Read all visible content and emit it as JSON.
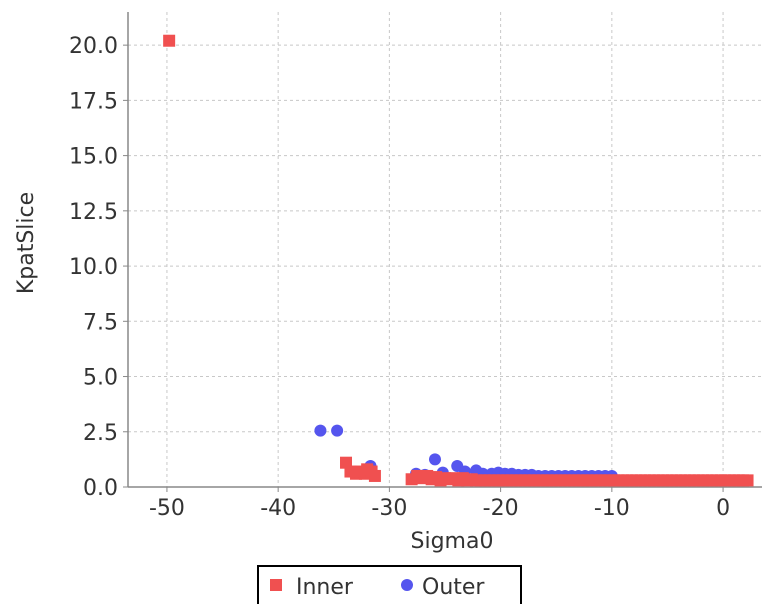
{
  "chart_data": {
    "type": "scatter",
    "xlabel": "Sigma0",
    "ylabel": "KpatSlice",
    "xlim": [
      -53.5,
      3.5
    ],
    "ylim": [
      0,
      21.5
    ],
    "x_ticks": [
      -50,
      -40,
      -30,
      -20,
      -10,
      0
    ],
    "x_tick_labels": [
      "-50",
      "-40",
      "-30",
      "-20",
      "-10",
      "0"
    ],
    "y_ticks": [
      0,
      2.5,
      5,
      7.5,
      10,
      12.5,
      15,
      17.5,
      20
    ],
    "y_tick_labels": [
      "0.0",
      "2.5",
      "5.0",
      "7.5",
      "10.0",
      "12.5",
      "15.0",
      "17.5",
      "20.0"
    ],
    "grid": true,
    "legend_position": "bottom-center",
    "series": [
      {
        "name": "Inner",
        "marker": "square",
        "color": "#f05050",
        "points": [
          [
            -49.8,
            20.2
          ],
          [
            -33.9,
            1.1
          ],
          [
            -33.5,
            0.7
          ],
          [
            -33.0,
            0.6
          ],
          [
            -32.6,
            0.7
          ],
          [
            -32.2,
            0.6
          ],
          [
            -32.0,
            0.8
          ],
          [
            -31.6,
            0.7
          ],
          [
            -31.3,
            0.5
          ],
          [
            -28.0,
            0.35
          ],
          [
            -27.5,
            0.5
          ],
          [
            -27.0,
            0.4
          ],
          [
            -26.6,
            0.5
          ],
          [
            -26.2,
            0.35
          ],
          [
            -25.8,
            0.45
          ],
          [
            -25.4,
            0.3
          ],
          [
            -25.0,
            0.4
          ],
          [
            -24.6,
            0.35
          ],
          [
            -24.2,
            0.4
          ],
          [
            -23.8,
            0.3
          ],
          [
            -23.4,
            0.4
          ],
          [
            -23.0,
            0.3
          ],
          [
            -22.6,
            0.35
          ],
          [
            -22.2,
            0.3
          ],
          [
            -21.8,
            0.3
          ],
          [
            -21.4,
            0.3
          ],
          [
            -21.0,
            0.3
          ],
          [
            -20.6,
            0.3
          ],
          [
            -20.2,
            0.3
          ],
          [
            -19.8,
            0.3
          ],
          [
            -19.4,
            0.3
          ],
          [
            -19.0,
            0.3
          ],
          [
            -18.6,
            0.3
          ],
          [
            -18.2,
            0.3
          ],
          [
            -17.8,
            0.3
          ],
          [
            -17.4,
            0.3
          ],
          [
            -17.0,
            0.3
          ],
          [
            -16.6,
            0.3
          ],
          [
            -16.2,
            0.3
          ],
          [
            -15.8,
            0.3
          ],
          [
            -15.4,
            0.3
          ],
          [
            -15.0,
            0.3
          ],
          [
            -14.6,
            0.3
          ],
          [
            -14.2,
            0.3
          ],
          [
            -13.8,
            0.3
          ],
          [
            -13.4,
            0.3
          ],
          [
            -13.0,
            0.3
          ],
          [
            -12.6,
            0.3
          ],
          [
            -12.2,
            0.3
          ],
          [
            -11.8,
            0.3
          ],
          [
            -11.4,
            0.3
          ],
          [
            -11.0,
            0.3
          ],
          [
            -10.6,
            0.3
          ],
          [
            -10.2,
            0.3
          ],
          [
            -9.8,
            0.3
          ],
          [
            -9.4,
            0.3
          ],
          [
            -9.0,
            0.3
          ],
          [
            -8.6,
            0.3
          ],
          [
            -8.2,
            0.3
          ],
          [
            -7.8,
            0.3
          ],
          [
            -7.4,
            0.3
          ],
          [
            -7.0,
            0.3
          ],
          [
            -6.6,
            0.3
          ],
          [
            -6.2,
            0.3
          ],
          [
            -5.8,
            0.3
          ],
          [
            -5.4,
            0.3
          ],
          [
            -5.0,
            0.3
          ],
          [
            -4.6,
            0.3
          ],
          [
            -4.2,
            0.3
          ],
          [
            -3.8,
            0.3
          ],
          [
            -3.4,
            0.3
          ],
          [
            -3.0,
            0.3
          ],
          [
            -2.6,
            0.3
          ],
          [
            -2.2,
            0.3
          ],
          [
            -1.8,
            0.3
          ],
          [
            -1.4,
            0.3
          ],
          [
            -1.0,
            0.3
          ],
          [
            -0.6,
            0.3
          ],
          [
            -0.2,
            0.3
          ],
          [
            0.2,
            0.3
          ],
          [
            0.6,
            0.3
          ],
          [
            1.0,
            0.3
          ],
          [
            1.4,
            0.3
          ],
          [
            1.8,
            0.3
          ],
          [
            2.2,
            0.3
          ]
        ]
      },
      {
        "name": "Outer",
        "marker": "circle",
        "color": "#5555ee",
        "points": [
          [
            -36.2,
            2.55
          ],
          [
            -34.7,
            2.55
          ],
          [
            -31.7,
            0.95
          ],
          [
            -27.6,
            0.6
          ],
          [
            -26.8,
            0.55
          ],
          [
            -25.9,
            1.25
          ],
          [
            -25.2,
            0.65
          ],
          [
            -23.9,
            0.95
          ],
          [
            -23.2,
            0.7
          ],
          [
            -22.2,
            0.75
          ],
          [
            -21.6,
            0.6
          ],
          [
            -20.8,
            0.6
          ],
          [
            -20.2,
            0.65
          ],
          [
            -19.6,
            0.6
          ],
          [
            -19.0,
            0.6
          ],
          [
            -18.4,
            0.55
          ],
          [
            -17.8,
            0.55
          ],
          [
            -17.2,
            0.55
          ],
          [
            -16.6,
            0.5
          ],
          [
            -16.0,
            0.5
          ],
          [
            -15.4,
            0.5
          ],
          [
            -14.8,
            0.5
          ],
          [
            -14.2,
            0.5
          ],
          [
            -13.6,
            0.5
          ],
          [
            -13.0,
            0.5
          ],
          [
            -12.4,
            0.5
          ],
          [
            -11.8,
            0.5
          ],
          [
            -11.2,
            0.5
          ],
          [
            -10.6,
            0.5
          ],
          [
            -10.0,
            0.5
          ]
        ]
      }
    ]
  }
}
